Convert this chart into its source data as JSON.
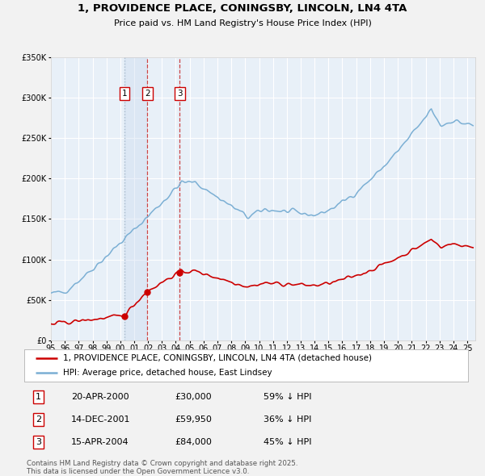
{
  "title_line1": "1, PROVIDENCE PLACE, CONINGSBY, LINCOLN, LN4 4TA",
  "title_line2": "Price paid vs. HM Land Registry's House Price Index (HPI)",
  "legend_red": "1, PROVIDENCE PLACE, CONINGSBY, LINCOLN, LN4 4TA (detached house)",
  "legend_blue": "HPI: Average price, detached house, East Lindsey",
  "footer": "Contains HM Land Registry data © Crown copyright and database right 2025.\nThis data is licensed under the Open Government Licence v3.0.",
  "sale_dates_str": [
    "2000-04-20",
    "2001-12-14",
    "2004-04-15"
  ],
  "sale_prices": [
    30000,
    59950,
    84000
  ],
  "sale_labels": [
    "1",
    "2",
    "3"
  ],
  "sale_info": [
    [
      "1",
      "20-APR-2000",
      "£30,000",
      "59% ↓ HPI"
    ],
    [
      "2",
      "14-DEC-2001",
      "£59,950",
      "36% ↓ HPI"
    ],
    [
      "3",
      "15-APR-2004",
      "£84,000",
      "45% ↓ HPI"
    ]
  ],
  "red_color": "#cc0000",
  "blue_color": "#7bafd4",
  "plot_bg": "#e8f0f8",
  "grid_color": "#ffffff",
  "vline_blue_color": "#aabbcc",
  "vline_red_color": "#cc4444",
  "shade_color": "#c8d8ee",
  "ylim": [
    0,
    350000
  ],
  "yticks": [
    0,
    50000,
    100000,
    150000,
    200000,
    250000,
    300000,
    350000
  ],
  "ytick_labels": [
    "£0",
    "£50K",
    "£100K",
    "£150K",
    "£200K",
    "£250K",
    "£300K",
    "£350K"
  ],
  "fig_bg": "#f2f2f2"
}
